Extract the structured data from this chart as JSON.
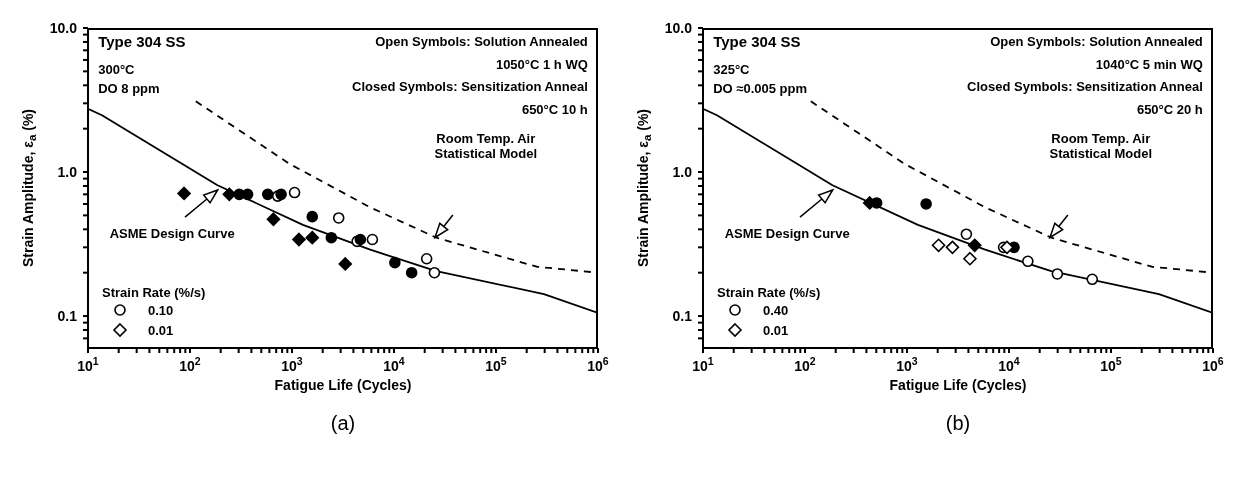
{
  "chart_data": [
    {
      "type": "scatter",
      "title": "(a)",
      "xlabel": "Fatigue Life (Cycles)",
      "ylabel": "Strain Amplitude,  ε$_{a}$ (%)",
      "legend_title": "Strain Rate (%/s)",
      "legend": "bottom left",
      "log": "xy",
      "xlim": [
        10,
        1000000
      ],
      "ylim": [
        0.06,
        10
      ],
      "xticks": [
        {
          "value": 10,
          "label": "10$^{1}$"
        },
        {
          "value": 20,
          "label": null
        },
        {
          "value": 30,
          "label": null
        },
        {
          "value": 40,
          "label": null
        },
        {
          "value": 50,
          "label": null
        },
        {
          "value": 60,
          "label": null
        },
        {
          "value": 70,
          "label": null
        },
        {
          "value": 80,
          "label": null
        },
        {
          "value": 90,
          "label": null
        },
        {
          "value": 100,
          "label": "10$^{2}$"
        },
        {
          "value": 200,
          "label": null
        },
        {
          "value": 300,
          "label": null
        },
        {
          "value": 400,
          "label": null
        },
        {
          "value": 500,
          "label": null
        },
        {
          "value": 600,
          "label": null
        },
        {
          "value": 700,
          "label": null
        },
        {
          "value": 800,
          "label": null
        },
        {
          "value": 900,
          "label": null
        },
        {
          "value": 1000,
          "label": "10$^{3}$"
        },
        {
          "value": 2000,
          "label": null
        },
        {
          "value": 3000,
          "label": null
        },
        {
          "value": 4000,
          "label": null
        },
        {
          "value": 5000,
          "label": null
        },
        {
          "value": 6000,
          "label": null
        },
        {
          "value": 7000,
          "label": null
        },
        {
          "value": 8000,
          "label": null
        },
        {
          "value": 9000,
          "label": null
        },
        {
          "value": 10000,
          "label": "10$^{4}$"
        },
        {
          "value": 20000,
          "label": null
        },
        {
          "value": 30000,
          "label": null
        },
        {
          "value": 40000,
          "label": null
        },
        {
          "value": 50000,
          "label": null
        },
        {
          "value": 60000,
          "label": null
        },
        {
          "value": 70000,
          "label": null
        },
        {
          "value": 80000,
          "label": null
        },
        {
          "value": 90000,
          "label": null
        },
        {
          "value": 100000,
          "label": "10$^{5}$"
        },
        {
          "value": 200000,
          "label": null
        },
        {
          "value": 300000,
          "label": null
        },
        {
          "value": 400000,
          "label": null
        },
        {
          "value": 500000,
          "label": null
        },
        {
          "value": 600000,
          "label": null
        },
        {
          "value": 700000,
          "label": null
        },
        {
          "value": 800000,
          "label": null
        },
        {
          "value": 900000,
          "label": null
        },
        {
          "value": 1000000,
          "label": "10$^{6}$"
        }
      ],
      "yticks": [
        {
          "value": 0.07,
          "label": null
        },
        {
          "value": 0.08,
          "label": null
        },
        {
          "value": 0.09,
          "label": null
        },
        0.1,
        {
          "value": 0.2,
          "label": null
        },
        {
          "value": 0.3,
          "label": null
        },
        {
          "value": 0.4,
          "label": null
        },
        {
          "value": 0.5,
          "label": null
        },
        {
          "value": 0.6,
          "label": null
        },
        {
          "value": 0.7,
          "label": null
        },
        {
          "value": 0.8,
          "label": null
        },
        {
          "value": 0.9,
          "label": null
        },
        {
          "value": 1,
          "label": "1.0"
        },
        {
          "value": 2,
          "label": null
        },
        {
          "value": 3,
          "label": null
        },
        {
          "value": 4,
          "label": null
        },
        {
          "value": 5,
          "label": null
        },
        {
          "value": 6,
          "label": null
        },
        {
          "value": 7,
          "label": null
        },
        {
          "value": 8,
          "label": null
        },
        {
          "value": 9,
          "label": null
        },
        {
          "value": 10,
          "label": "10.0"
        }
      ],
      "annotations": [
        "Type 304 SS",
        "300°C",
        "DO 8 ppm",
        "Open Symbols: Solution Annealed",
        "1050°C 1 h WQ",
        "Closed Symbols: Sensitization Anneal",
        "650°C 10 h",
        "ASME Design Curve",
        "Room Temp. Air\nStatistical Model"
      ],
      "series": [
        {
          "type": "line",
          "color": "#000000",
          "line_style": "solid",
          "marker": "none",
          "x": [
            10,
            13.7,
            186,
            1280,
            5750,
            26000,
            295000,
            1000000
          ],
          "values": [
            2.75,
            2.48,
            0.81,
            0.43,
            0.29,
            0.205,
            0.142,
            0.105
          ]
        },
        {
          "type": "line",
          "color": "#000000",
          "line_style": "dashed",
          "marker": "none",
          "x": [
            114,
            944,
            5800,
            26000,
            251000,
            1000000
          ],
          "values": [
            3.1,
            1.14,
            0.57,
            0.35,
            0.22,
            0.2
          ]
        },
        {
          "name": "0.10",
          "color": "#ffffff",
          "marker": "circle",
          "x": [
            724,
            1060,
            2870,
            4350,
            6140,
            20900,
            24900
          ],
          "values": [
            0.68,
            0.72,
            0.48,
            0.33,
            0.34,
            0.25,
            0.2
          ]
        },
        {
          "color": "#000000",
          "marker": "circle",
          "x": [
            304,
            367,
            578,
            782,
            1580,
            2430,
            4680,
            10200,
            14900
          ],
          "values": [
            0.7,
            0.7,
            0.7,
            0.7,
            0.49,
            0.35,
            0.34,
            0.235,
            0.2
          ]
        },
        {
          "name": "0.01",
          "color": "#ffffff",
          "marker": "diamond"
        },
        {
          "color": "#000000",
          "marker": "diamond",
          "x": [
            87.5,
            243,
            658,
            1170,
            1580,
            3330
          ],
          "values": [
            0.71,
            0.7,
            0.47,
            0.34,
            0.35,
            0.23
          ]
        }
      ]
    },
    {
      "type": "scatter",
      "title": "(b)",
      "xlabel": "Fatigue Life (Cycles)",
      "ylabel": "Strain Amplitude,  ε$_{a}$ (%)",
      "legend_title": "Strain Rate (%/s)",
      "legend": "bottom left",
      "log": "xy",
      "xlim": [
        10,
        1000000
      ],
      "ylim": [
        0.06,
        10
      ],
      "xticks": [
        {
          "value": 10,
          "label": "10$^{1}$"
        },
        {
          "value": 20,
          "label": null
        },
        {
          "value": 30,
          "label": null
        },
        {
          "value": 40,
          "label": null
        },
        {
          "value": 50,
          "label": null
        },
        {
          "value": 60,
          "label": null
        },
        {
          "value": 70,
          "label": null
        },
        {
          "value": 80,
          "label": null
        },
        {
          "value": 90,
          "label": null
        },
        {
          "value": 100,
          "label": "10$^{2}$"
        },
        {
          "value": 200,
          "label": null
        },
        {
          "value": 300,
          "label": null
        },
        {
          "value": 400,
          "label": null
        },
        {
          "value": 500,
          "label": null
        },
        {
          "value": 600,
          "label": null
        },
        {
          "value": 700,
          "label": null
        },
        {
          "value": 800,
          "label": null
        },
        {
          "value": 900,
          "label": null
        },
        {
          "value": 1000,
          "label": "10$^{3}$"
        },
        {
          "value": 2000,
          "label": null
        },
        {
          "value": 3000,
          "label": null
        },
        {
          "value": 4000,
          "label": null
        },
        {
          "value": 5000,
          "label": null
        },
        {
          "value": 6000,
          "label": null
        },
        {
          "value": 7000,
          "label": null
        },
        {
          "value": 8000,
          "label": null
        },
        {
          "value": 9000,
          "label": null
        },
        {
          "value": 10000,
          "label": "10$^{4}$"
        },
        {
          "value": 20000,
          "label": null
        },
        {
          "value": 30000,
          "label": null
        },
        {
          "value": 40000,
          "label": null
        },
        {
          "value": 50000,
          "label": null
        },
        {
          "value": 60000,
          "label": null
        },
        {
          "value": 70000,
          "label": null
        },
        {
          "value": 80000,
          "label": null
        },
        {
          "value": 90000,
          "label": null
        },
        {
          "value": 100000,
          "label": "10$^{5}$"
        },
        {
          "value": 200000,
          "label": null
        },
        {
          "value": 300000,
          "label": null
        },
        {
          "value": 400000,
          "label": null
        },
        {
          "value": 500000,
          "label": null
        },
        {
          "value": 600000,
          "label": null
        },
        {
          "value": 700000,
          "label": null
        },
        {
          "value": 800000,
          "label": null
        },
        {
          "value": 900000,
          "label": null
        },
        {
          "value": 1000000,
          "label": "10$^{6}$"
        }
      ],
      "yticks": [
        {
          "value": 0.07,
          "label": null
        },
        {
          "value": 0.08,
          "label": null
        },
        {
          "value": 0.09,
          "label": null
        },
        0.1,
        {
          "value": 0.2,
          "label": null
        },
        {
          "value": 0.3,
          "label": null
        },
        {
          "value": 0.4,
          "label": null
        },
        {
          "value": 0.5,
          "label": null
        },
        {
          "value": 0.6,
          "label": null
        },
        {
          "value": 0.7,
          "label": null
        },
        {
          "value": 0.8,
          "label": null
        },
        {
          "value": 0.9,
          "label": null
        },
        {
          "value": 1,
          "label": "1.0"
        },
        {
          "value": 2,
          "label": null
        },
        {
          "value": 3,
          "label": null
        },
        {
          "value": 4,
          "label": null
        },
        {
          "value": 5,
          "label": null
        },
        {
          "value": 6,
          "label": null
        },
        {
          "value": 7,
          "label": null
        },
        {
          "value": 8,
          "label": null
        },
        {
          "value": 9,
          "label": null
        },
        {
          "value": 10,
          "label": "10.0"
        }
      ],
      "annotations": [
        "Type 304 SS",
        "325°C",
        "DO ≈0.005 ppm",
        "Open Symbols: Solution Annealed",
        "1040°C 5 min WQ",
        "Closed Symbols: Sensitization Anneal",
        "650°C 20 h",
        "ASME Design Curve",
        "Room Temp. Air\nStatistical Model"
      ],
      "series": [
        {
          "type": "line",
          "color": "#000000",
          "line_style": "solid",
          "marker": "none",
          "x": [
            10,
            13.7,
            186,
            1280,
            5750,
            26000,
            295000,
            1000000
          ],
          "values": [
            2.75,
            2.48,
            0.81,
            0.43,
            0.29,
            0.205,
            0.142,
            0.105
          ]
        },
        {
          "type": "line",
          "color": "#000000",
          "line_style": "dashed",
          "marker": "none",
          "x": [
            114,
            944,
            5800,
            26000,
            251000,
            1000000
          ],
          "values": [
            3.1,
            1.14,
            0.57,
            0.35,
            0.22,
            0.2
          ]
        },
        {
          "name": "0.40",
          "color": "#ffffff",
          "marker": "circle",
          "x": [
            3820,
            8850,
            15300,
            29800,
            65500
          ],
          "values": [
            0.37,
            0.3,
            0.24,
            0.196,
            0.18
          ]
        },
        {
          "color": "#000000",
          "marker": "circle",
          "x": [
            504,
            1540,
            11200
          ],
          "values": [
            0.61,
            0.6,
            0.3
          ]
        },
        {
          "name": "0.01",
          "color": "#ffffff",
          "marker": "diamond",
          "x": [
            2040,
            2790,
            4140,
            9550
          ],
          "values": [
            0.31,
            0.3,
            0.25,
            0.3
          ]
        },
        {
          "color": "#000000",
          "marker": "diamond",
          "x": [
            431,
            4610
          ],
          "values": [
            0.61,
            0.31
          ]
        }
      ]
    }
  ]
}
